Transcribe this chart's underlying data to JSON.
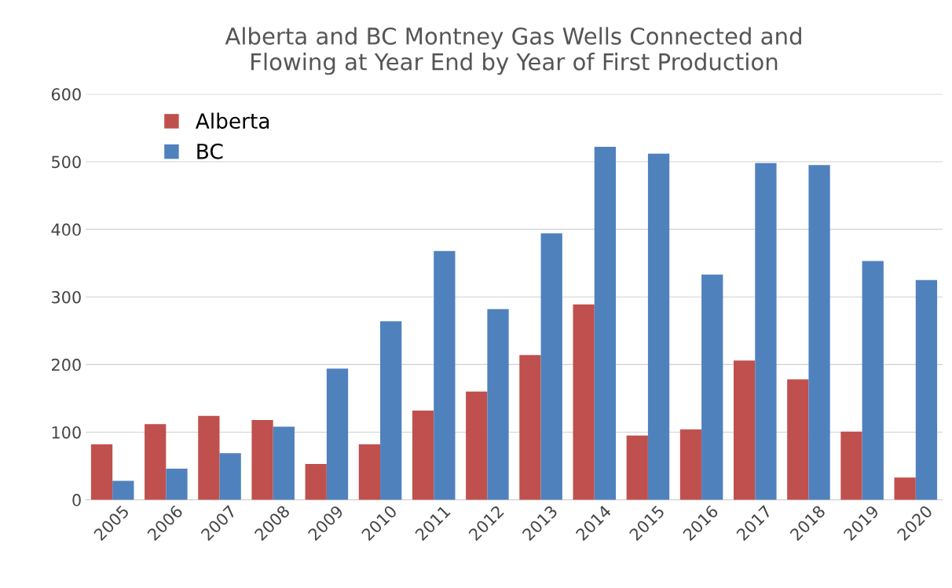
{
  "chart_data": {
    "type": "bar",
    "title": "Alberta and BC Montney Gas Wells Connected and\nFlowing at Year End by Year of First Production",
    "categories": [
      "2005",
      "2006",
      "2007",
      "2008",
      "2009",
      "2010",
      "2011",
      "2012",
      "2013",
      "2014",
      "2015",
      "2016",
      "2017",
      "2018",
      "2019",
      "2020"
    ],
    "series": [
      {
        "name": "Alberta",
        "color": "#c0504d",
        "values": [
          82,
          112,
          124,
          118,
          53,
          82,
          132,
          160,
          214,
          289,
          95,
          104,
          206,
          178,
          101,
          33
        ]
      },
      {
        "name": "BC",
        "color": "#4f81bd",
        "values": [
          28,
          46,
          69,
          108,
          194,
          264,
          368,
          282,
          394,
          522,
          512,
          333,
          498,
          495,
          353,
          325
        ]
      }
    ],
    "ylim": [
      0,
      600
    ],
    "yticks": [
      0,
      100,
      200,
      300,
      400,
      500,
      600
    ],
    "grid": "y",
    "legend": "top left"
  }
}
